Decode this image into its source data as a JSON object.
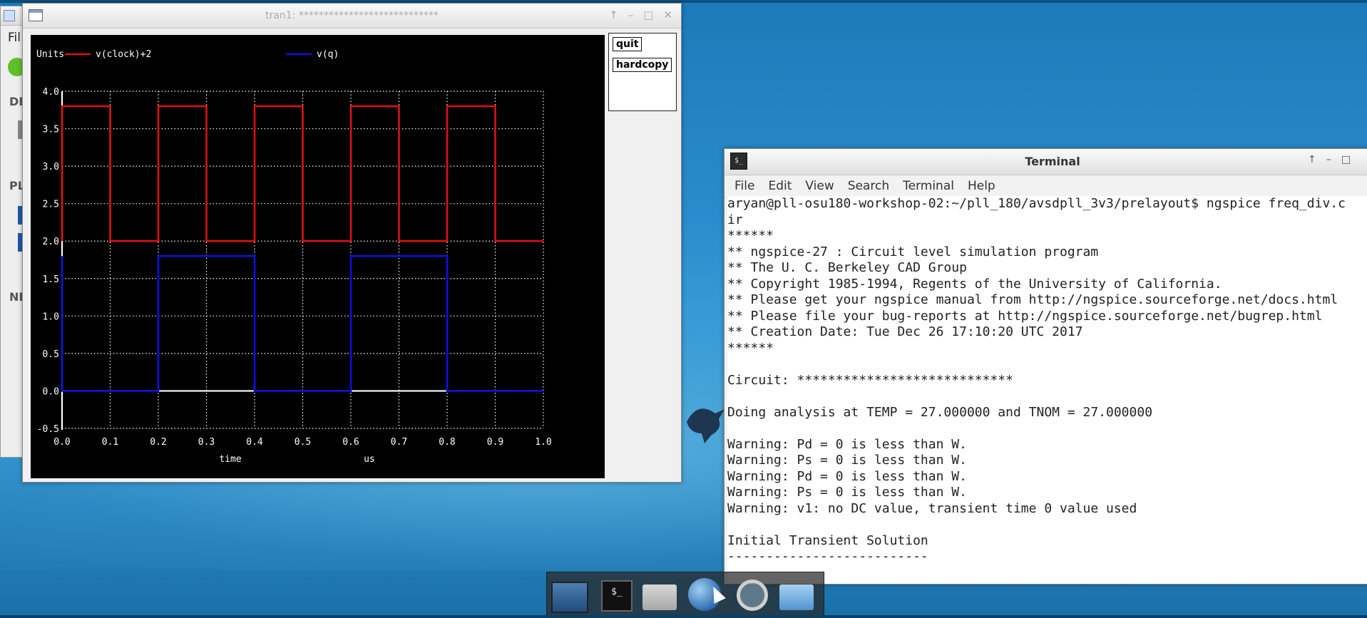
{
  "back_window": {
    "menu_label": "Fil",
    "labels": [
      "DE",
      "PL",
      "NE"
    ]
  },
  "plot_window": {
    "title": "tran1: ****************************",
    "controls": [
      "↑",
      "–",
      "□",
      "✕"
    ],
    "buttons": {
      "quit": "quit",
      "hardcopy": "hardcopy"
    }
  },
  "chart_data": {
    "type": "line",
    "background": "#000000",
    "title_label": "Units",
    "xlabel": "time",
    "xunit": "us",
    "xlim": [
      0.0,
      1.0
    ],
    "ylim": [
      -0.5,
      4.0
    ],
    "grid": true,
    "legend_placement": "top",
    "x_ticks": [
      "0.0",
      "0.1",
      "0.2",
      "0.3",
      "0.4",
      "0.5",
      "0.6",
      "0.7",
      "0.8",
      "0.9",
      "1.0"
    ],
    "y_ticks": [
      "-0.5",
      "0.0",
      "0.5",
      "1.0",
      "1.5",
      "2.0",
      "2.5",
      "3.0",
      "3.5",
      "4.0"
    ],
    "series": [
      {
        "name": "v(clock)+2",
        "color": "#e01010",
        "x": [
          0.0,
          0.0,
          0.1,
          0.1,
          0.2,
          0.2,
          0.3,
          0.3,
          0.4,
          0.4,
          0.5,
          0.5,
          0.6,
          0.6,
          0.7,
          0.7,
          0.8,
          0.8,
          0.9,
          0.9,
          1.0
        ],
        "y": [
          2.0,
          3.8,
          3.8,
          2.0,
          2.0,
          3.8,
          3.8,
          2.0,
          2.0,
          3.8,
          3.8,
          2.0,
          2.0,
          3.8,
          3.8,
          2.0,
          2.0,
          3.8,
          3.8,
          2.0,
          2.0
        ]
      },
      {
        "name": "v(q)",
        "color": "#1010e0",
        "x": [
          0.0,
          0.0,
          0.2,
          0.2,
          0.4,
          0.4,
          0.6,
          0.6,
          0.8,
          0.8,
          1.0
        ],
        "y": [
          1.8,
          0.0,
          0.0,
          1.8,
          1.8,
          0.0,
          0.0,
          1.8,
          1.8,
          0.0,
          0.0
        ]
      }
    ]
  },
  "terminal": {
    "title": "Terminal",
    "menu": [
      "File",
      "Edit",
      "View",
      "Search",
      "Terminal",
      "Help"
    ],
    "lines": [
      "aryan@pll-osu180-workshop-02:~/pll_180/avsdpll_3v3/prelayout$ ngspice freq_div.c",
      "ir",
      "******",
      "** ngspice-27 : Circuit level simulation program",
      "** The U. C. Berkeley CAD Group",
      "** Copyright 1985-1994, Regents of the University of California.",
      "** Please get your ngspice manual from http://ngspice.sourceforge.net/docs.html",
      "** Please file your bug-reports at http://ngspice.sourceforge.net/bugrep.html",
      "** Creation Date: Tue Dec 26 17:10:20 UTC 2017",
      "******",
      "",
      "Circuit: ****************************",
      "",
      "Doing analysis at TEMP = 27.000000 and TNOM = 27.000000",
      "",
      "Warning: Pd = 0 is less than W.",
      "Warning: Ps = 0 is less than W.",
      "Warning: Pd = 0 is less than W.",
      "Warning: Ps = 0 is less than W.",
      "Warning: v1: no DC value, transient time 0 value used",
      "",
      "Initial Transient Solution",
      "--------------------------"
    ]
  },
  "dock": {
    "items": [
      "desktop-icon",
      "terminal-icon",
      "home-folder-icon",
      "browser-globe-icon",
      "search-magnifier-icon",
      "folder-icon"
    ],
    "terminal_glyph": "$_"
  }
}
